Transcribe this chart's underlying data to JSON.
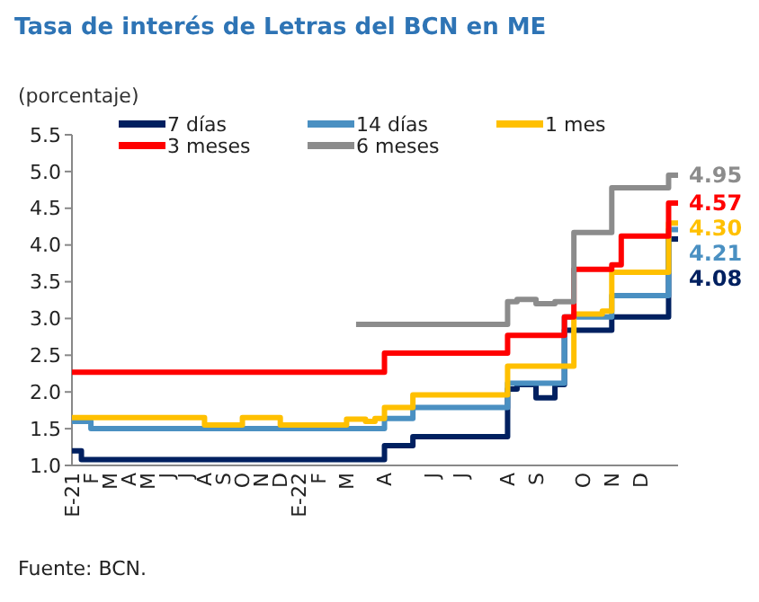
{
  "chart_data": {
    "type": "step",
    "title": "Tasa de interés de Letras del BCN en ME",
    "ylabel": "(porcentaje)",
    "annotations": [
      "Fuente: BCN."
    ],
    "categories": [
      "E-21",
      null,
      "F",
      null,
      "M",
      null,
      "A",
      null,
      "M",
      null,
      "J",
      null,
      "J",
      null,
      "A",
      null,
      "S",
      null,
      "O",
      null,
      "N",
      null,
      "D",
      null,
      "E-22",
      null,
      "F",
      null,
      null,
      "M",
      null,
      null,
      null,
      "A",
      null,
      null,
      null,
      null,
      "J",
      null,
      null,
      "J",
      null,
      null,
      null,
      null,
      "A",
      null,
      null,
      "S",
      null,
      null,
      null,
      null,
      "O",
      null,
      null,
      "N",
      null,
      null,
      "D",
      null,
      null,
      null,
      null
    ],
    "ylim": [
      1,
      5.5
    ],
    "yticks": [
      {
        "value": 1,
        "label": "1.0"
      },
      {
        "value": 1.5,
        "label": "1.5"
      },
      {
        "value": 2,
        "label": "2.0"
      },
      {
        "value": 2.5,
        "label": "2.5"
      },
      {
        "value": 3,
        "label": "3.0"
      },
      {
        "value": 3.5,
        "label": "3.5"
      },
      {
        "value": 4,
        "label": "4.0"
      },
      {
        "value": 4.5,
        "label": "4.5"
      },
      {
        "value": 5,
        "label": "5.0"
      },
      {
        "value": 5.5,
        "label": "5.5"
      }
    ],
    "legend": "top",
    "line_style": "solid",
    "series": [
      {
        "name": "7 días",
        "color": "#002060",
        "values": [
          1.2,
          1.08,
          1.08,
          1.08,
          1.08,
          1.08,
          1.08,
          1.08,
          1.08,
          1.08,
          1.08,
          1.08,
          1.08,
          1.08,
          1.08,
          1.08,
          1.08,
          1.08,
          1.08,
          1.08,
          1.08,
          1.08,
          1.08,
          1.08,
          1.08,
          1.08,
          1.08,
          1.08,
          1.08,
          1.08,
          1.08,
          1.08,
          1.08,
          1.27,
          1.27,
          1.27,
          1.39,
          1.39,
          1.39,
          1.39,
          1.39,
          1.39,
          1.39,
          1.39,
          1.39,
          1.39,
          2.04,
          2.1,
          2.1,
          1.92,
          1.92,
          2.1,
          2.84,
          2.84,
          2.84,
          2.84,
          2.84,
          3.02,
          3.02,
          3.02,
          3.02,
          3.02,
          3.02,
          4.08,
          4.08
        ],
        "value_labels": [
          null,
          null,
          null,
          null,
          null,
          null,
          null,
          null,
          null,
          null,
          null,
          null,
          null,
          null,
          null,
          null,
          null,
          null,
          null,
          null,
          null,
          null,
          null,
          null,
          null,
          null,
          null,
          null,
          null,
          null,
          null,
          null,
          null,
          null,
          null,
          null,
          null,
          null,
          null,
          null,
          null,
          null,
          null,
          null,
          null,
          null,
          null,
          null,
          null,
          null,
          null,
          null,
          null,
          null,
          null,
          null,
          null,
          null,
          null,
          null,
          null,
          null,
          null,
          null,
          "4.08"
        ]
      },
      {
        "name": "14 días",
        "color": "#4a90c2",
        "values": [
          1.6,
          1.6,
          1.5,
          1.5,
          1.5,
          1.5,
          1.5,
          1.5,
          1.5,
          1.5,
          1.5,
          1.5,
          1.5,
          1.5,
          1.5,
          1.5,
          1.5,
          1.5,
          1.5,
          1.5,
          1.5,
          1.5,
          1.5,
          1.5,
          1.5,
          1.5,
          1.5,
          1.5,
          1.5,
          1.5,
          1.5,
          1.5,
          1.5,
          1.64,
          1.64,
          1.64,
          1.79,
          1.79,
          1.79,
          1.79,
          1.79,
          1.79,
          1.79,
          1.79,
          1.79,
          1.79,
          2.12,
          2.12,
          2.12,
          2.12,
          2.12,
          2.12,
          3.02,
          3.02,
          3.02,
          3.02,
          3.02,
          3.31,
          3.31,
          3.31,
          3.31,
          3.31,
          3.31,
          4.21,
          4.21
        ],
        "value_labels": [
          null,
          null,
          null,
          null,
          null,
          null,
          null,
          null,
          null,
          null,
          null,
          null,
          null,
          null,
          null,
          null,
          null,
          null,
          null,
          null,
          null,
          null,
          null,
          null,
          null,
          null,
          null,
          null,
          null,
          null,
          null,
          null,
          null,
          null,
          null,
          null,
          null,
          null,
          null,
          null,
          null,
          null,
          null,
          null,
          null,
          null,
          null,
          null,
          null,
          null,
          null,
          null,
          null,
          null,
          null,
          null,
          null,
          null,
          null,
          null,
          null,
          null,
          null,
          null,
          "4.21"
        ]
      },
      {
        "name": "1 mes",
        "color": "#ffc000",
        "values": [
          1.65,
          1.65,
          1.65,
          1.65,
          1.65,
          1.65,
          1.65,
          1.65,
          1.65,
          1.65,
          1.65,
          1.65,
          1.65,
          1.65,
          1.55,
          1.55,
          1.55,
          1.55,
          1.65,
          1.65,
          1.65,
          1.65,
          1.55,
          1.55,
          1.55,
          1.55,
          1.55,
          1.55,
          1.55,
          1.63,
          1.63,
          1.6,
          1.64,
          1.79,
          1.79,
          1.79,
          1.96,
          1.96,
          1.96,
          1.96,
          1.96,
          1.96,
          1.96,
          1.96,
          1.96,
          1.96,
          2.35,
          2.35,
          2.35,
          2.35,
          2.35,
          2.35,
          2.35,
          3.06,
          3.06,
          3.06,
          3.1,
          3.63,
          3.63,
          3.63,
          3.63,
          3.63,
          3.63,
          4.3,
          4.3
        ],
        "value_labels": [
          null,
          null,
          null,
          null,
          null,
          null,
          null,
          null,
          null,
          null,
          null,
          null,
          null,
          null,
          null,
          null,
          null,
          null,
          null,
          null,
          null,
          null,
          null,
          null,
          null,
          null,
          null,
          null,
          null,
          null,
          null,
          null,
          null,
          null,
          null,
          null,
          null,
          null,
          null,
          null,
          null,
          null,
          null,
          null,
          null,
          null,
          null,
          null,
          null,
          null,
          null,
          null,
          null,
          null,
          null,
          null,
          null,
          null,
          null,
          null,
          null,
          null,
          null,
          null,
          "4.30"
        ]
      },
      {
        "name": "3 meses",
        "color": "#ff0000",
        "values": [
          2.27,
          2.27,
          2.27,
          2.27,
          2.27,
          2.27,
          2.27,
          2.27,
          2.27,
          2.27,
          2.27,
          2.27,
          2.27,
          2.27,
          2.27,
          2.27,
          2.27,
          2.27,
          2.27,
          2.27,
          2.27,
          2.27,
          2.27,
          2.27,
          2.27,
          2.27,
          2.27,
          2.27,
          2.27,
          2.27,
          2.27,
          2.27,
          2.27,
          2.53,
          2.53,
          2.53,
          2.53,
          2.53,
          2.53,
          2.53,
          2.53,
          2.53,
          2.53,
          2.53,
          2.53,
          2.53,
          2.77,
          2.77,
          2.77,
          2.77,
          2.77,
          2.77,
          3.02,
          3.67,
          3.67,
          3.67,
          3.67,
          3.73,
          4.12,
          4.12,
          4.12,
          4.12,
          4.12,
          4.57,
          4.57
        ],
        "value_labels": [
          null,
          null,
          null,
          null,
          null,
          null,
          null,
          null,
          null,
          null,
          null,
          null,
          null,
          null,
          null,
          null,
          null,
          null,
          null,
          null,
          null,
          null,
          null,
          null,
          null,
          null,
          null,
          null,
          null,
          null,
          null,
          null,
          null,
          null,
          null,
          null,
          null,
          null,
          null,
          null,
          null,
          null,
          null,
          null,
          null,
          null,
          null,
          null,
          null,
          null,
          null,
          null,
          null,
          null,
          null,
          null,
          null,
          null,
          null,
          null,
          null,
          null,
          null,
          null,
          "4.57"
        ]
      },
      {
        "name": "6 meses",
        "color": "#8c8c8c",
        "values": [
          null,
          null,
          null,
          null,
          null,
          null,
          null,
          null,
          null,
          null,
          null,
          null,
          null,
          null,
          null,
          null,
          null,
          null,
          null,
          null,
          null,
          null,
          null,
          null,
          null,
          null,
          null,
          null,
          null,
          null,
          2.92,
          2.92,
          2.92,
          2.92,
          2.92,
          2.92,
          2.92,
          2.92,
          2.92,
          2.92,
          2.92,
          2.92,
          2.92,
          2.92,
          2.92,
          2.92,
          3.23,
          3.26,
          3.26,
          3.2,
          3.2,
          3.23,
          3.23,
          4.17,
          4.17,
          4.17,
          4.17,
          4.78,
          4.78,
          4.78,
          4.78,
          4.78,
          4.78,
          4.95,
          4.95
        ],
        "value_labels": [
          null,
          null,
          null,
          null,
          null,
          null,
          null,
          null,
          null,
          null,
          null,
          null,
          null,
          null,
          null,
          null,
          null,
          null,
          null,
          null,
          null,
          null,
          null,
          null,
          null,
          null,
          null,
          null,
          null,
          null,
          null,
          null,
          null,
          null,
          null,
          null,
          null,
          null,
          null,
          null,
          null,
          null,
          null,
          null,
          null,
          null,
          null,
          null,
          null,
          null,
          null,
          null,
          null,
          null,
          null,
          null,
          null,
          null,
          null,
          null,
          null,
          null,
          null,
          null,
          "4.95"
        ]
      }
    ]
  }
}
